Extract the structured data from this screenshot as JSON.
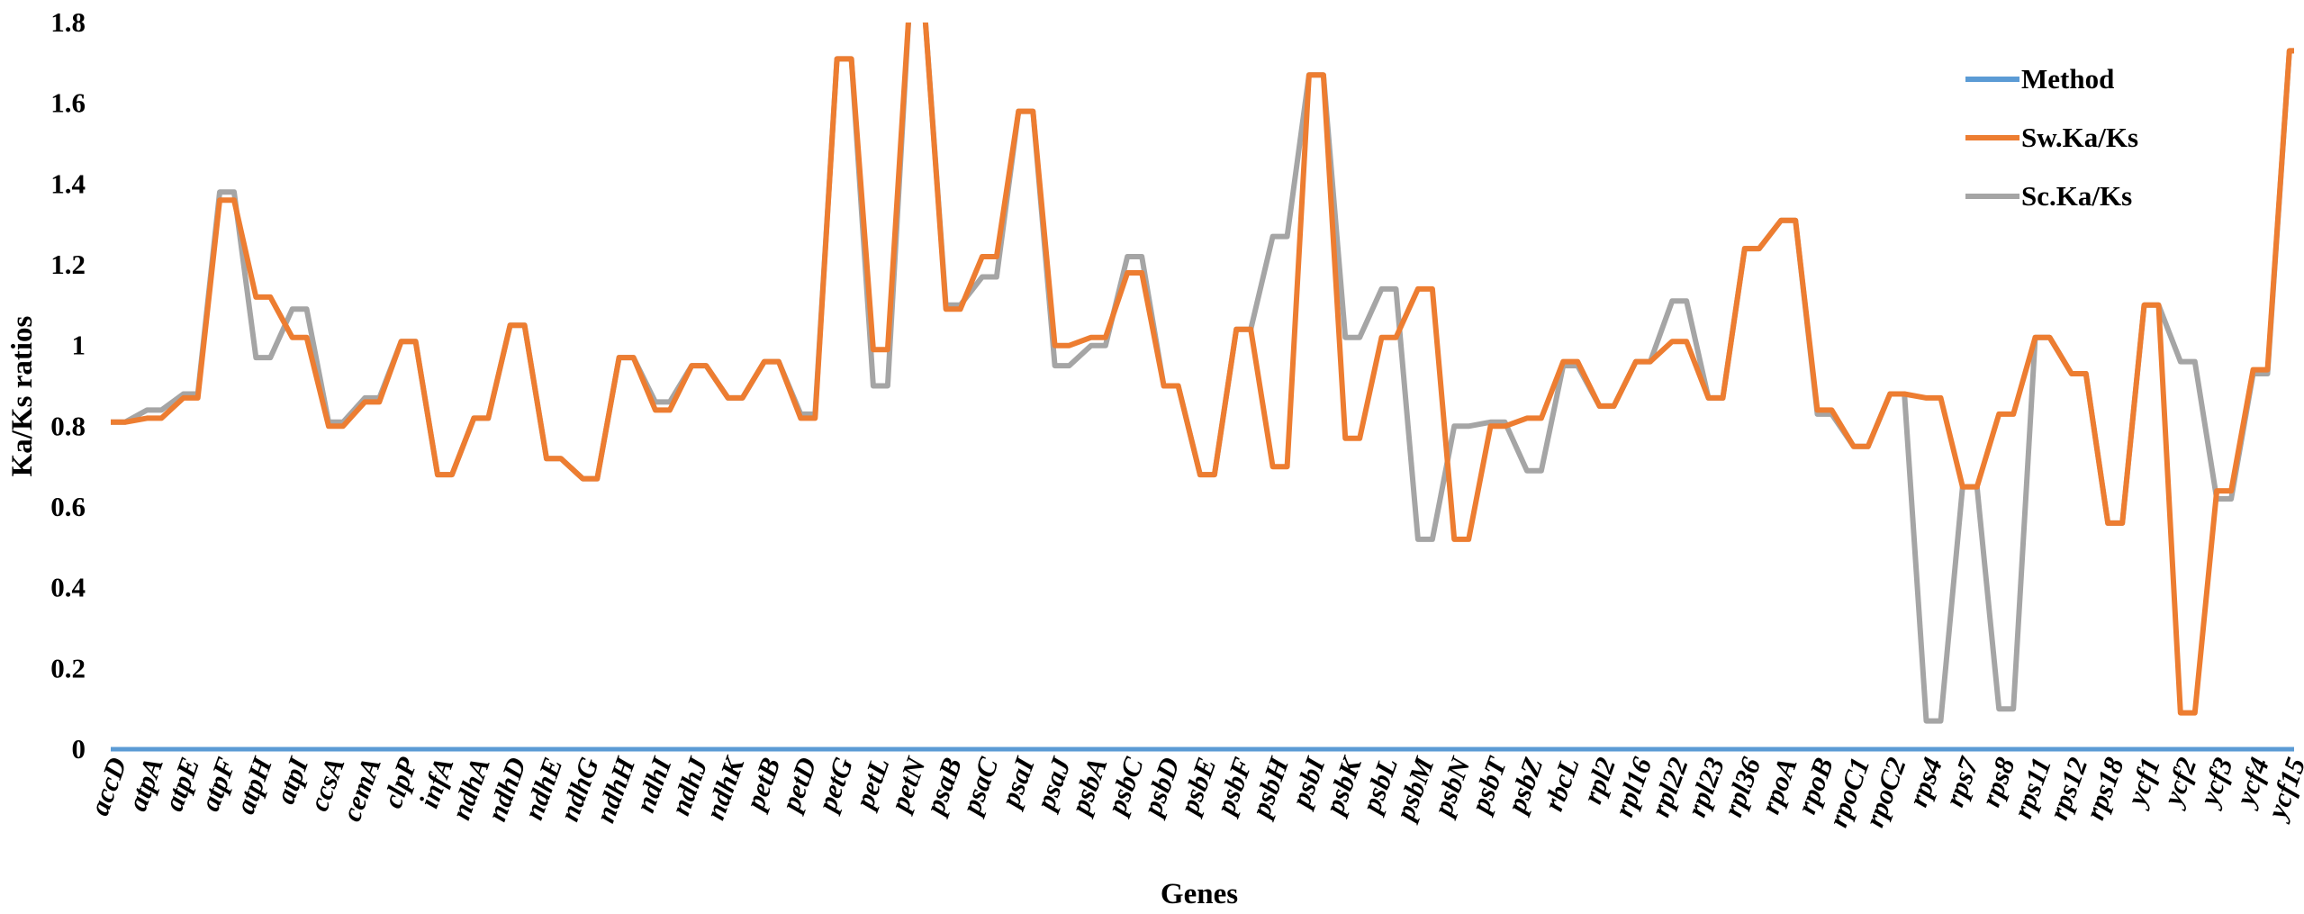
{
  "chart_data": {
    "type": "line",
    "xlabel": "Genes",
    "ylabel": "Ka/Ks ratios",
    "ylim": [
      0,
      1.8
    ],
    "yticks": [
      "0",
      "0.2",
      "0.4",
      "0.6",
      "0.8",
      "1",
      "1.2",
      "1.4",
      "1.6",
      "1.8"
    ],
    "grid": false,
    "legend_position": "top-right",
    "categories": [
      "accD",
      "atpA",
      "atpE",
      "atpF",
      "atpH",
      "atpI",
      "ccsA",
      "cemA",
      "clpP",
      "infA",
      "ndhA",
      "ndhD",
      "ndhE",
      "ndhG",
      "ndhH",
      "ndhI",
      "ndhJ",
      "ndhK",
      "petB",
      "petD",
      "petG",
      "petL",
      "petN",
      "psaB",
      "psaC",
      "psaI",
      "psaJ",
      "psbA",
      "psbC",
      "psbD",
      "psbE",
      "psbF",
      "psbH",
      "psbI",
      "psbK",
      "psbL",
      "psbM",
      "psbN",
      "psbT",
      "psbZ",
      "rbcL",
      "rpl2",
      "rpl16",
      "rpl22",
      "rpl23",
      "rpl36",
      "rpoA",
      "rpoB",
      "rpoC1",
      "rpoC2",
      "rps4",
      "rps7",
      "rps8",
      "rps11",
      "rps12",
      "rps18",
      "ycf1",
      "ycf2",
      "ycf3",
      "ycf4",
      "ycf15"
    ],
    "series": [
      {
        "name": "Method",
        "color": "#5B9BD5",
        "values": [
          0,
          0,
          0,
          0,
          0,
          0,
          0,
          0,
          0,
          0,
          0,
          0,
          0,
          0,
          0,
          0,
          0,
          0,
          0,
          0,
          0,
          0,
          0,
          0,
          0,
          0,
          0,
          0,
          0,
          0,
          0,
          0,
          0,
          0,
          0,
          0,
          0,
          0,
          0,
          0,
          0,
          0,
          0,
          0,
          0,
          0,
          0,
          0,
          0,
          0,
          0,
          0,
          0,
          0,
          0,
          0,
          0,
          0,
          0,
          0,
          0
        ]
      },
      {
        "name": "Sw.Ka/Ks",
        "color": "#ED7D31",
        "values": [
          0.81,
          0.82,
          0.87,
          1.36,
          1.12,
          1.02,
          0.8,
          0.86,
          1.01,
          0.68,
          0.82,
          1.05,
          0.72,
          0.67,
          0.97,
          0.84,
          0.95,
          0.87,
          0.96,
          0.82,
          1.71,
          0.99,
          1.85,
          1.09,
          1.22,
          1.58,
          1.0,
          1.02,
          1.18,
          0.9,
          0.68,
          1.04,
          0.7,
          1.67,
          0.77,
          1.02,
          1.14,
          0.52,
          0.8,
          0.82,
          0.96,
          0.85,
          0.96,
          1.01,
          0.87,
          1.24,
          1.31,
          0.84,
          0.75,
          0.88,
          0.87,
          0.65,
          0.83,
          1.02,
          0.93,
          0.56,
          1.1,
          0.09,
          0.64,
          0.94,
          1.73
        ]
      },
      {
        "name": "Sc.Ka/Ks",
        "color": "#A5A5A5",
        "values": [
          0.81,
          0.84,
          0.88,
          1.38,
          0.97,
          1.09,
          0.81,
          0.87,
          1.01,
          0.68,
          0.82,
          1.05,
          0.72,
          0.67,
          0.97,
          0.86,
          0.95,
          0.87,
          0.96,
          0.83,
          1.71,
          0.9,
          1.85,
          1.1,
          1.17,
          1.58,
          0.95,
          1.0,
          1.22,
          0.9,
          0.68,
          1.04,
          1.27,
          1.67,
          1.02,
          1.14,
          0.52,
          0.8,
          0.81,
          0.69,
          0.95,
          0.85,
          0.96,
          1.11,
          0.87,
          1.24,
          1.31,
          0.83,
          0.75,
          0.88,
          0.07,
          0.65,
          0.1,
          1.02,
          0.93,
          0.56,
          1.1,
          0.96,
          0.62,
          0.93,
          1.73
        ]
      }
    ]
  }
}
